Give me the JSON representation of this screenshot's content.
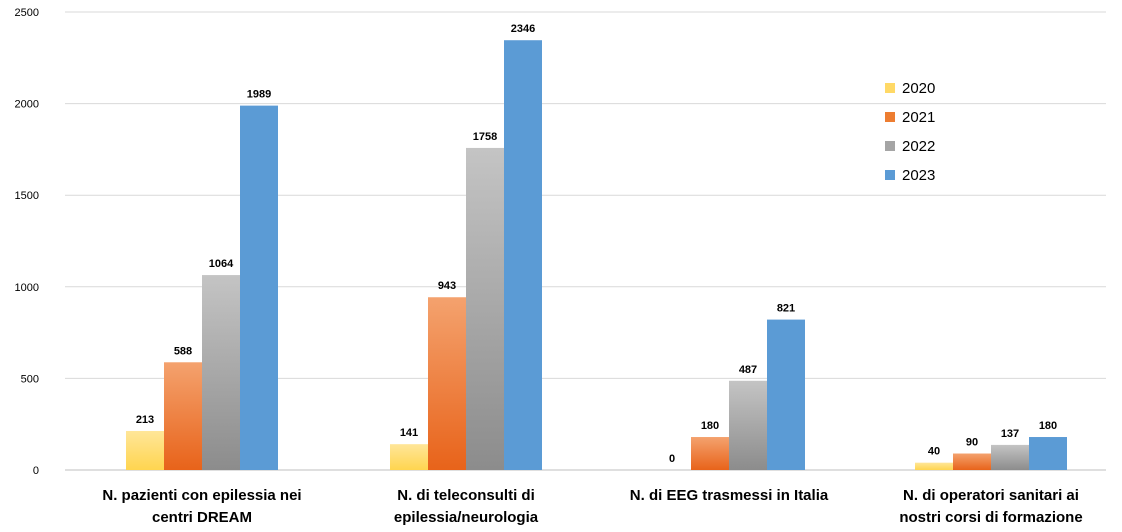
{
  "chart_data": {
    "type": "bar",
    "title": "",
    "xlabel": "",
    "ylabel": "",
    "ylim": [
      0,
      2500
    ],
    "yticks": [
      0,
      500,
      1000,
      1500,
      2000,
      2500
    ],
    "grid": true,
    "legend_position": "right",
    "categories": [
      [
        "N. pazienti con epilessia nei",
        "centri DREAM"
      ],
      [
        "N. di teleconsulti di",
        "epilessia/neurologia"
      ],
      [
        "N. di EEG trasmessi in Italia"
      ],
      [
        "N. di operatori sanitari ai",
        "nostri corsi di formazione"
      ]
    ],
    "series": [
      {
        "name": "2020",
        "color": "#FFD966",
        "colors": [
          "#FFE699",
          "#FFD54F"
        ],
        "values": [
          213,
          141,
          0,
          40
        ]
      },
      {
        "name": "2021",
        "color": "#ED7D31",
        "colors": [
          "#F4A26E",
          "#E8631A"
        ],
        "values": [
          588,
          943,
          180,
          90
        ]
      },
      {
        "name": "2022",
        "color": "#A5A5A5",
        "colors": [
          "#C4C4C4",
          "#8C8C8C"
        ],
        "values": [
          1064,
          1758,
          487,
          137
        ]
      },
      {
        "name": "2023",
        "color": "#5B9BD5",
        "colors": [
          "#5B9BD5",
          "#5B9BD5"
        ],
        "values": [
          1989,
          2346,
          821,
          180
        ]
      }
    ]
  }
}
